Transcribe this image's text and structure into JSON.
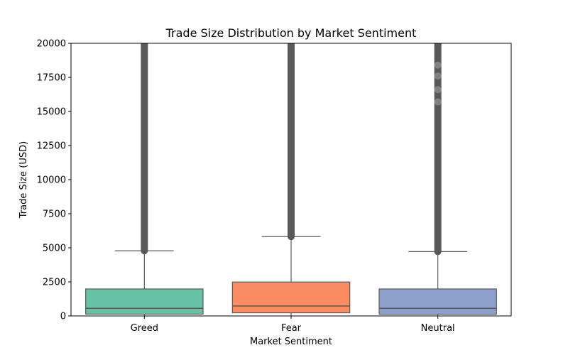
{
  "chart_data": {
    "type": "box",
    "title": "Trade Size Distribution by Market Sentiment",
    "xlabel": "Market Sentiment",
    "ylabel": "Trade Size (USD)",
    "ylim": [
      0,
      20000
    ],
    "yticks": [
      0,
      2500,
      5000,
      7500,
      10000,
      12500,
      15000,
      17500,
      20000
    ],
    "grid": false,
    "categories": [
      "Greed",
      "Fear",
      "Neutral"
    ],
    "boxes": [
      {
        "category": "Greed",
        "color": "#66c2a5",
        "whisker_low": 0,
        "q1": 130,
        "median": 560,
        "q3": 1980,
        "whisker_high": 4780,
        "outliers_from": 4780,
        "outliers_to": 20000
      },
      {
        "category": "Fear",
        "color": "#fc8d62",
        "whisker_low": 0,
        "q1": 230,
        "median": 730,
        "q3": 2490,
        "whisker_high": 5820,
        "outliers_from": 5820,
        "outliers_to": 20000
      },
      {
        "category": "Neutral",
        "color": "#8da0cb",
        "whisker_low": 0,
        "q1": 120,
        "median": 560,
        "q3": 1980,
        "whisker_high": 4720,
        "outliers_from": 4720,
        "outliers_to": 20000
      }
    ],
    "line_color": "#595959"
  }
}
